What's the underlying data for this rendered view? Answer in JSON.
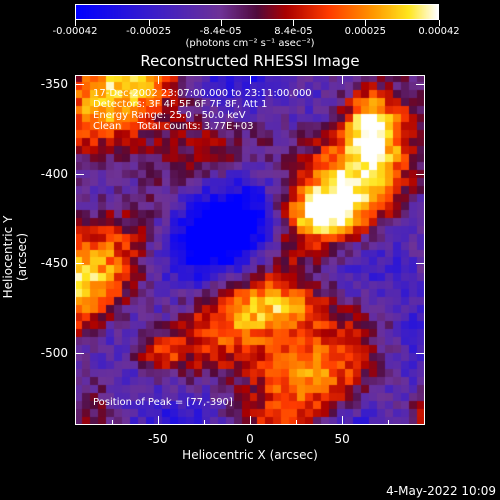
{
  "colorbar": {
    "tick_labels": [
      "-0.00042",
      "-0.00025",
      "-8.4e-05",
      "8.4e-05",
      "0.00025",
      "0.00042"
    ],
    "units": "(photons cm⁻² s⁻¹ asec⁻²)",
    "range": [
      -0.00042,
      0.00042
    ],
    "colormap": "blue-purple-red-orange-yellow-white"
  },
  "title": "Reconstructed RHESSI Image",
  "info": {
    "time": "17-Dec-2002 23:07:00.000 to 23:11:00.000",
    "detectors": "Detectors: 3F 4F 5F 6F 7F 8F, Att 1",
    "energy": "Energy Range: 25.0 - 50.0 keV",
    "clean": "Clean     Total counts: 3.77E+03",
    "peak": "Position of Peak = [77,-390]"
  },
  "axes": {
    "xlabel": "Heliocentric X (arcsec)",
    "ylabel": "Heliocentric Y (arcsec)",
    "xticks": [
      "-50",
      "0",
      "50"
    ],
    "yticks": [
      "-350",
      "-400",
      "-450",
      "-500"
    ],
    "xlim": [
      -95,
      95
    ],
    "ylim": [
      -540,
      -345
    ]
  },
  "timestamp": "4-May-2022 10:09"
}
